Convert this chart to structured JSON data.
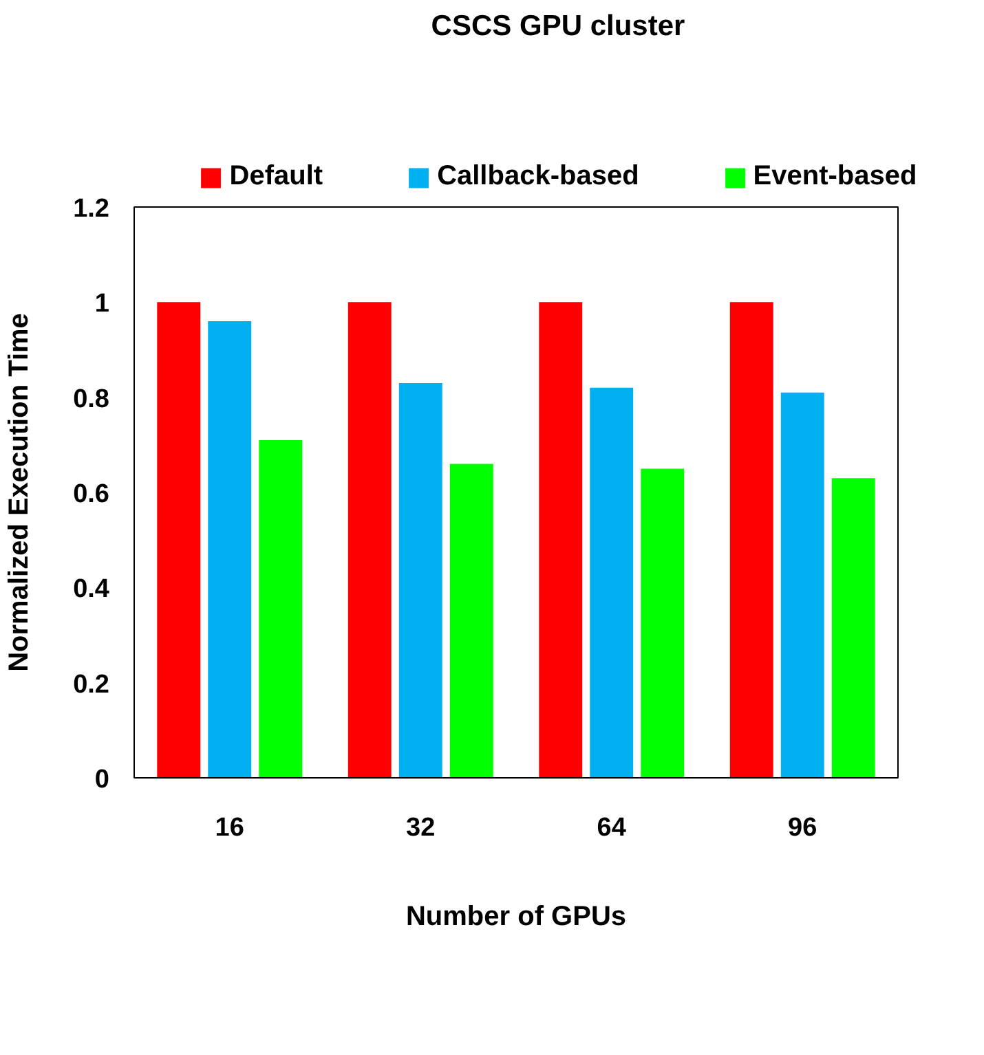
{
  "chart_data": {
    "type": "bar",
    "title": "CSCS GPU cluster",
    "xlabel": "Number of GPUs",
    "ylabel": "Normalized Execution Time",
    "categories": [
      "16",
      "32",
      "64",
      "96"
    ],
    "series": [
      {
        "name": "Default",
        "color": "#ff0000",
        "values": [
          1,
          1,
          1,
          1
        ]
      },
      {
        "name": "Callback-based",
        "color": "#00b0f0",
        "values": [
          0.96,
          0.83,
          0.82,
          0.81
        ]
      },
      {
        "name": "Event-based",
        "color": "#00ff00",
        "values": [
          0.71,
          0.66,
          0.65,
          0.63
        ]
      }
    ],
    "ylim": [
      0,
      1.2
    ],
    "yticks": [
      0,
      0.2,
      0.4,
      0.6,
      0.8,
      1,
      1.2
    ],
    "grid": false,
    "legend": "top"
  }
}
